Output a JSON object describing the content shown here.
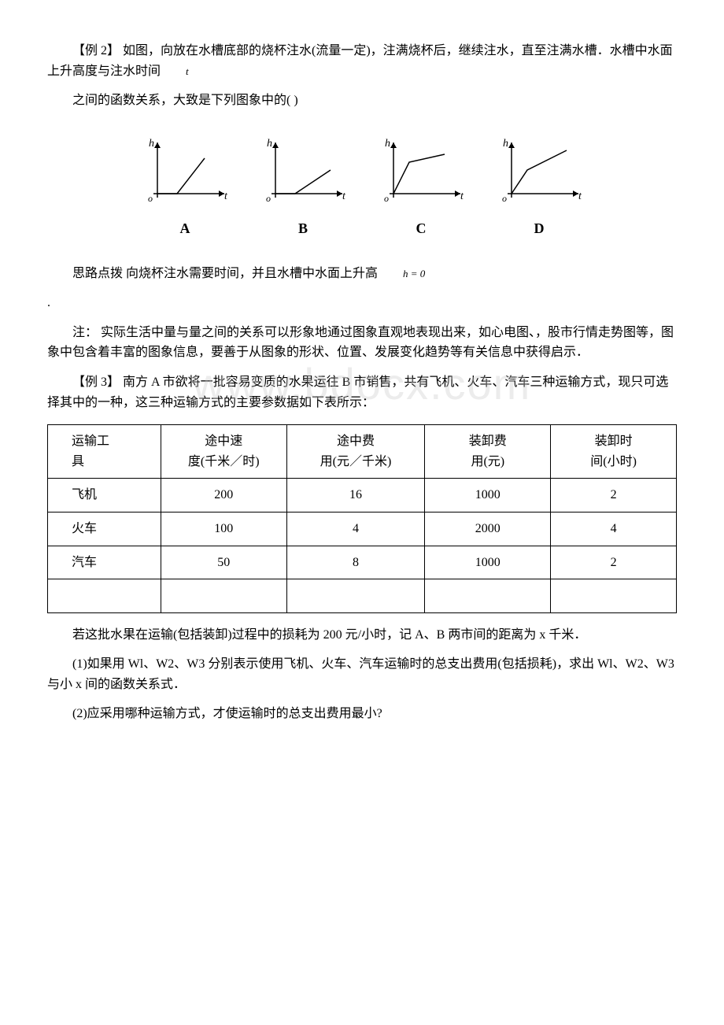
{
  "example2": {
    "title": "【例 2】 如图，向放在水槽底部的烧杯注水(流量一定)，注满烧杯后，继续注水，直至注满水槽．水槽中水面上升高度与注水时间",
    "variable": "t",
    "question": "之间的函数关系，大致是下列图象中的( )"
  },
  "graphs": {
    "labels": [
      "A",
      "B",
      "C",
      "D"
    ],
    "axis_y": "h",
    "axis_x": "t",
    "origin": "o",
    "stroke_color": "#000000",
    "stroke_width": 1.5
  },
  "hint": {
    "prefix": "思路点拨 向烧杯注水需要时间，并且水槽中水面上升高",
    "formula": "h = 0",
    "period": "."
  },
  "note": "注： 实际生活中量与量之间的关系可以形象地通过图象直观地表现出来，如心电图、，股市行情走势图等，图象中包含着丰富的图象信息，要善于从图象的形状、位置、发展变化趋势等有关信息中获得启示．",
  "watermark_text": "www.bdocx.com",
  "example3": {
    "title": "【例 3】 南方 A 市欲将一批容易变质的水果运往 B 市销售，共有飞机、火车、汽车三种运输方式，现只可选择其中的一种，这三种运输方式的主要参数据如下表所示："
  },
  "table": {
    "headers": [
      {
        "line1": "运输工",
        "line2": "具"
      },
      {
        "line1": "途中速",
        "line2": "度(千米／时)"
      },
      {
        "line1": "途中费",
        "line2": "用(元／千米)"
      },
      {
        "line1": "装卸费",
        "line2": "用(元)"
      },
      {
        "line1": "装卸时",
        "line2": "间(小时)"
      }
    ],
    "rows": [
      [
        "飞机",
        "200",
        "16",
        "1000",
        "2"
      ],
      [
        "火车",
        "100",
        "4",
        "2000",
        "4"
      ],
      [
        "汽车",
        "50",
        "8",
        "1000",
        "2"
      ],
      [
        "",
        "",
        "",
        "",
        ""
      ]
    ],
    "col_widths": [
      "18%",
      "20%",
      "22%",
      "20%",
      "20%"
    ]
  },
  "problem": {
    "intro": "若这批水果在运输(包括装卸)过程中的损耗为 200 元/小时，记 A、B 两市间的距离为 x 千米．",
    "q1": "(1)如果用 Wl、W2、W3 分别表示使用飞机、火车、汽车运输时的总支出费用(包括损耗)，求出 Wl、W2、W3 与小 x 间的函数关系式．",
    "q2": "(2)应采用哪种运输方式，才使运输时的总支出费用最小?"
  }
}
